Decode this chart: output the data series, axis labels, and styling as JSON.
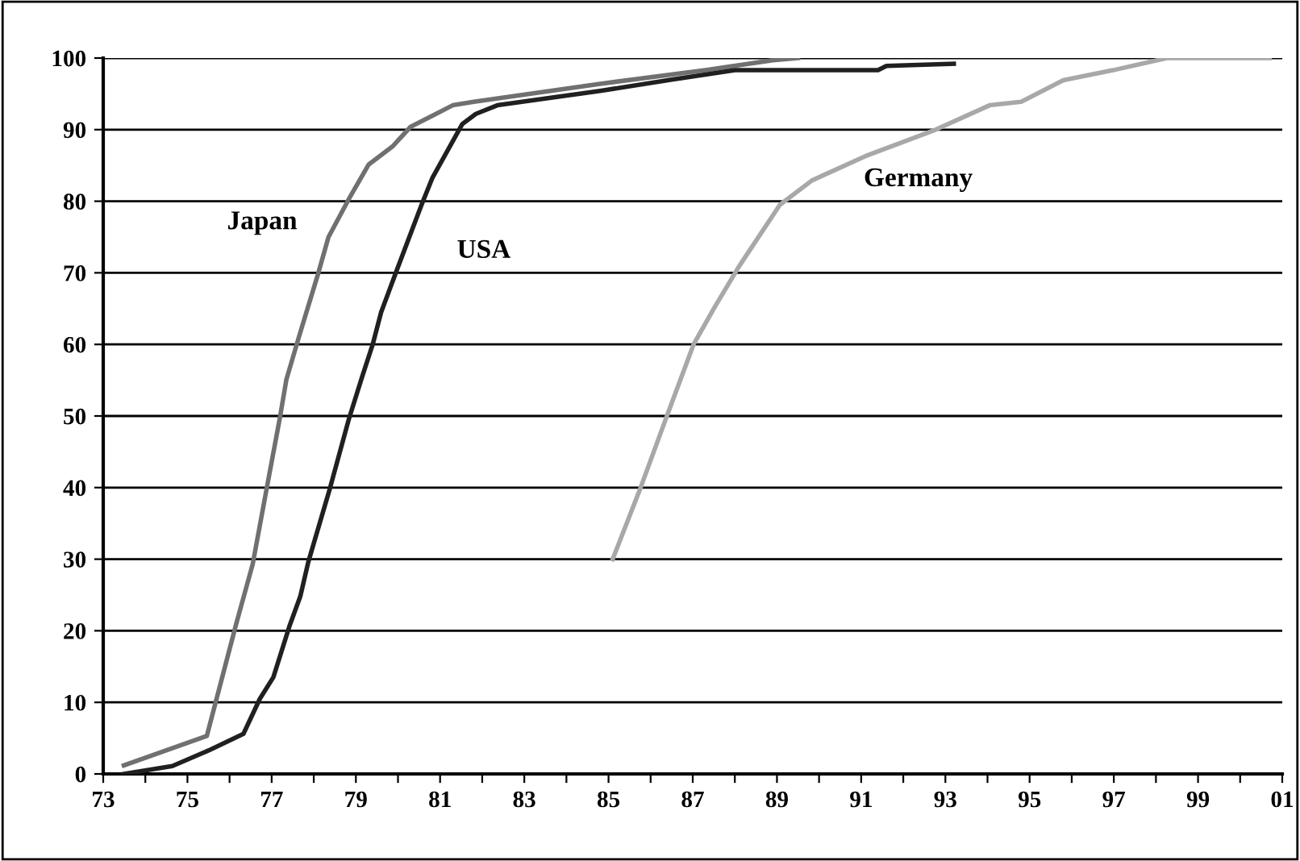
{
  "chart_data": {
    "type": "line",
    "series": [
      {
        "name": "Japan",
        "color": "#707070",
        "x": [
          1973.49,
          1975.46,
          1976.16,
          1976.55,
          1976.88,
          1977.2,
          1977.35,
          1977.65,
          1978.1,
          1978.35,
          1978.86,
          1979.3,
          1979.88,
          1980.3,
          1980.8,
          1981.3,
          1981.8,
          1984.8,
          1987.3,
          1988.9,
          1989.5
        ],
        "values": [
          1.2,
          5.3,
          21,
          29.3,
          39.8,
          49.9,
          55.1,
          61.1,
          69.8,
          75,
          80.6,
          85.1,
          87.7,
          90.4,
          91.9,
          93.4,
          93.9,
          96.4,
          98.3,
          99.7,
          100
        ]
      },
      {
        "name": "USA",
        "color": "#202020",
        "x": [
          1973.49,
          1974.64,
          1975.55,
          1976.33,
          1976.72,
          1977.04,
          1977.42,
          1977.68,
          1977.87,
          1978.38,
          1978.83,
          1979.15,
          1979.4,
          1979.6,
          1979.98,
          1980.56,
          1980.82,
          1981.53,
          1981.85,
          1982.36,
          1984.8,
          1986.5,
          1988.0,
          1991.4,
          1991.6,
          1993.2
        ],
        "values": [
          0,
          1.1,
          3.4,
          5.6,
          10.5,
          13.5,
          20.6,
          24.8,
          29.6,
          39.8,
          49.5,
          55.5,
          60,
          64.5,
          70.5,
          79.5,
          83.3,
          90.8,
          92.2,
          93.4,
          95.4,
          97,
          98.3,
          98.3,
          98.9,
          99.2
        ]
      },
      {
        "name": "Germany",
        "color": "#a8a8a8",
        "x": [
          1985.1,
          1985.75,
          1986.38,
          1987.02,
          1987.53,
          1988.1,
          1989.07,
          1989.83,
          1991.1,
          1992.77,
          1994.05,
          1994.8,
          1995.8,
          1996.98,
          1998.26,
          2000.7
        ],
        "values": [
          30,
          39.8,
          49.9,
          60,
          65.3,
          70.9,
          79.5,
          82.9,
          86.3,
          90,
          93.4,
          93.9,
          96.9,
          98.3,
          100,
          100
        ]
      }
    ],
    "xlim": [
      1973,
      2001
    ],
    "xticks": [
      {
        "value": 1973,
        "label": "73"
      },
      {
        "value": 1974,
        "label": null
      },
      {
        "value": 1975,
        "label": "75"
      },
      {
        "value": 1976,
        "label": null
      },
      {
        "value": 1977,
        "label": "77"
      },
      {
        "value": 1978,
        "label": null
      },
      {
        "value": 1979,
        "label": "79"
      },
      {
        "value": 1980,
        "label": null
      },
      {
        "value": 1981,
        "label": "81"
      },
      {
        "value": 1982,
        "label": null
      },
      {
        "value": 1983,
        "label": "83"
      },
      {
        "value": 1984,
        "label": null
      },
      {
        "value": 1985,
        "label": "85"
      },
      {
        "value": 1986,
        "label": null
      },
      {
        "value": 1987,
        "label": "87"
      },
      {
        "value": 1988,
        "label": null
      },
      {
        "value": 1989,
        "label": "89"
      },
      {
        "value": 1990,
        "label": null
      },
      {
        "value": 1991,
        "label": "91"
      },
      {
        "value": 1992,
        "label": null
      },
      {
        "value": 1993,
        "label": "93"
      },
      {
        "value": 1994,
        "label": null
      },
      {
        "value": 1995,
        "label": "95"
      },
      {
        "value": 1996,
        "label": null
      },
      {
        "value": 1997,
        "label": "97"
      },
      {
        "value": 1998,
        "label": null
      },
      {
        "value": 1999,
        "label": "99"
      },
      {
        "value": 2000,
        "label": null
      },
      {
        "value": 2001,
        "label": "01"
      }
    ],
    "ylim": [
      0,
      100
    ],
    "yticks": [
      0,
      10,
      20,
      30,
      40,
      50,
      60,
      70,
      80,
      90,
      100
    ],
    "grid": "y",
    "legend": false,
    "marker": "none",
    "line_style": "solid"
  }
}
